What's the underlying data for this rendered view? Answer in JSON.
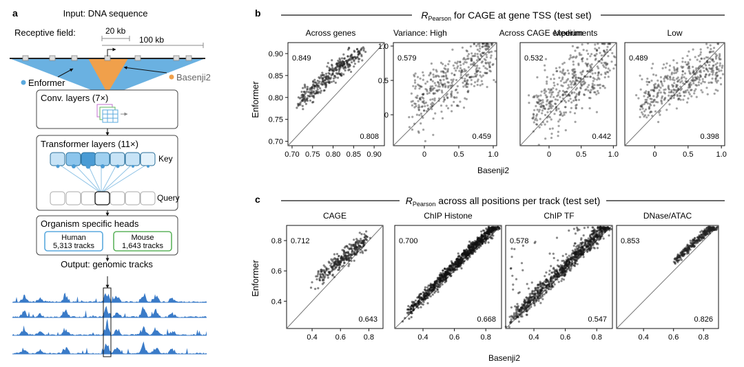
{
  "panel_a": {
    "letter": "a",
    "input_title": "Input: DNA sequence",
    "receptive_field_label": "Receptive field:",
    "rf_20kb": "20 kb",
    "rf_100kb": "100 kb",
    "enformer_label": "Enformer",
    "basenji2_label": "Basenji2",
    "conv_label": "Conv. layers (7×)",
    "transformer_label": "Transformer layers (11×)",
    "key_label": "Key",
    "query_label": "Query",
    "heads_label": "Organism specific heads",
    "human_name": "Human",
    "human_tracks": "5,313 tracks",
    "mouse_name": "Mouse",
    "mouse_tracks": "1,643 tracks",
    "output_label": "Output: genomic tracks",
    "colors": {
      "enformer": "#5aa9de",
      "basenji": "#f0a04b",
      "human": "#5aa9de",
      "mouse": "#5db35d",
      "track": "#3a7bc8"
    }
  },
  "panel_b": {
    "letter": "b",
    "header_r": "R",
    "header_sub": "Pearson",
    "header_rest": " for CAGE at gene TSS (test set)",
    "across_genes": "Across genes",
    "across_cage": "Across CAGE experiments",
    "ylabel": "Enformer",
    "xlabel": "Basenji2"
  },
  "panel_c": {
    "letter": "c",
    "header_r": "R",
    "header_sub": "Pearson",
    "header_rest": " across all positions per track (test set)",
    "ylabel": "Enformer",
    "xlabel": "Basenji2"
  },
  "chart_data": [
    {
      "type": "scatter",
      "panel": "b",
      "id": "b1",
      "title": "Across genes",
      "xlim": [
        0.69,
        0.925
      ],
      "ylim": [
        0.69,
        0.925
      ],
      "xticks": [
        0.7,
        0.75,
        0.8,
        0.85,
        0.9
      ],
      "xtick_labels": [
        "0.70",
        "0.75",
        "0.80",
        "0.85",
        "0.90"
      ],
      "yticks": [
        0.7,
        0.75,
        0.8,
        0.85,
        0.9
      ],
      "ytick_labels": [
        "0.70",
        "0.75",
        "0.80",
        "0.85",
        "0.90"
      ],
      "r_enformer": "0.849",
      "r_basenji": "0.808",
      "cloud": {
        "x0": 0.72,
        "x1": 0.87,
        "slope": 0.78,
        "intercept": 0.23,
        "spread": 0.012,
        "n": 340,
        "shade": "#222",
        "opacity": 0.55
      }
    },
    {
      "type": "scatter",
      "panel": "b",
      "id": "b2",
      "title": "Variance: High",
      "xlim": [
        -0.45,
        1.05
      ],
      "ylim": [
        -0.45,
        1.05
      ],
      "xticks": [
        0,
        0.5,
        1.0
      ],
      "xtick_labels": [
        "0",
        "0.5",
        "1.0"
      ],
      "yticks": [
        0,
        0.5,
        1.0
      ],
      "ytick_labels": [
        "0",
        "0.5",
        "1.0"
      ],
      "r_enformer": "0.579",
      "r_basenji": "0.459",
      "cloud": {
        "x0": -0.2,
        "x1": 1.0,
        "slope": 0.6,
        "intercept": 0.25,
        "spread": 0.22,
        "n": 420,
        "shade": "#333",
        "opacity": 0.45
      }
    },
    {
      "type": "scatter",
      "panel": "b",
      "id": "b3",
      "title": "Medium",
      "xlim": [
        -0.45,
        1.05
      ],
      "ylim": [
        -0.45,
        1.05
      ],
      "xticks": [
        0,
        0.5,
        1.0
      ],
      "xtick_labels": [
        "0",
        "0.5",
        "1.0"
      ],
      "yticks": [],
      "ytick_labels": [],
      "r_enformer": "0.532",
      "r_basenji": "0.442",
      "cloud": {
        "x0": -0.25,
        "x1": 1.0,
        "slope": 0.65,
        "intercept": 0.2,
        "spread": 0.22,
        "n": 440,
        "shade": "#333",
        "opacity": 0.45
      }
    },
    {
      "type": "scatter",
      "panel": "b",
      "id": "b4",
      "title": "Low",
      "xlim": [
        -0.45,
        1.05
      ],
      "ylim": [
        -0.45,
        1.05
      ],
      "xticks": [
        0,
        0.5,
        1.0
      ],
      "xtick_labels": [
        "0",
        "0.5",
        "1.0"
      ],
      "yticks": [],
      "ytick_labels": [],
      "r_enformer": "0.489",
      "r_basenji": "0.398",
      "cloud": {
        "x0": -0.2,
        "x1": 1.0,
        "slope": 0.45,
        "intercept": 0.3,
        "spread": 0.18,
        "n": 420,
        "shade": "#333",
        "opacity": 0.45
      }
    },
    {
      "type": "scatter",
      "panel": "c",
      "id": "c1",
      "title": "CAGE",
      "xlim": [
        0.22,
        0.9
      ],
      "ylim": [
        0.22,
        0.9
      ],
      "xticks": [
        0.4,
        0.6,
        0.8
      ],
      "xtick_labels": [
        "0.4",
        "0.6",
        "0.8"
      ],
      "yticks": [
        0.4,
        0.6,
        0.8
      ],
      "ytick_labels": [
        "0.4",
        "0.6",
        "0.8"
      ],
      "r_enformer": "0.712",
      "r_basenji": "0.643",
      "cloud": {
        "x0": 0.42,
        "x1": 0.78,
        "slope": 0.72,
        "intercept": 0.24,
        "spread": 0.03,
        "n": 320,
        "shade": "#222",
        "opacity": 0.55
      }
    },
    {
      "type": "scatter",
      "panel": "c",
      "id": "c2",
      "title": "ChIP Histone",
      "xlim": [
        0.22,
        0.9
      ],
      "ylim": [
        0.22,
        0.9
      ],
      "xticks": [
        0.4,
        0.6,
        0.8
      ],
      "xtick_labels": [
        "0.4",
        "0.6",
        "0.8"
      ],
      "yticks": [],
      "ytick_labels": [],
      "r_enformer": "0.700",
      "r_basenji": "0.668",
      "cloud": {
        "x0": 0.3,
        "x1": 0.86,
        "slope": 1.02,
        "intercept": 0.02,
        "spread": 0.02,
        "n": 900,
        "shade": "#111",
        "opacity": 0.55
      }
    },
    {
      "type": "scatter",
      "panel": "c",
      "id": "c3",
      "title": "ChIP TF",
      "xlim": [
        0.22,
        0.9
      ],
      "ylim": [
        0.22,
        0.9
      ],
      "xticks": [
        0.4,
        0.6,
        0.8
      ],
      "xtick_labels": [
        "0.4",
        "0.6",
        "0.8"
      ],
      "yticks": [],
      "ytick_labels": [],
      "r_enformer": "0.578",
      "r_basenji": "0.547",
      "cloud": {
        "x0": 0.25,
        "x1": 0.86,
        "slope": 1.02,
        "intercept": 0.02,
        "spread": 0.03,
        "n": 900,
        "shade": "#111",
        "opacity": 0.5
      }
    },
    {
      "type": "scatter",
      "panel": "c",
      "id": "c4",
      "title": "DNase/ATAC",
      "xlim": [
        0.22,
        0.9
      ],
      "ylim": [
        0.22,
        0.9
      ],
      "xticks": [
        0.4,
        0.6,
        0.8
      ],
      "xtick_labels": [
        "0.4",
        "0.6",
        "0.8"
      ],
      "yticks": [],
      "ytick_labels": [],
      "r_enformer": "0.853",
      "r_basenji": "0.826",
      "cloud": {
        "x0": 0.6,
        "x1": 0.88,
        "slope": 0.9,
        "intercept": 0.12,
        "spread": 0.015,
        "n": 320,
        "shade": "#222",
        "opacity": 0.55
      }
    }
  ]
}
